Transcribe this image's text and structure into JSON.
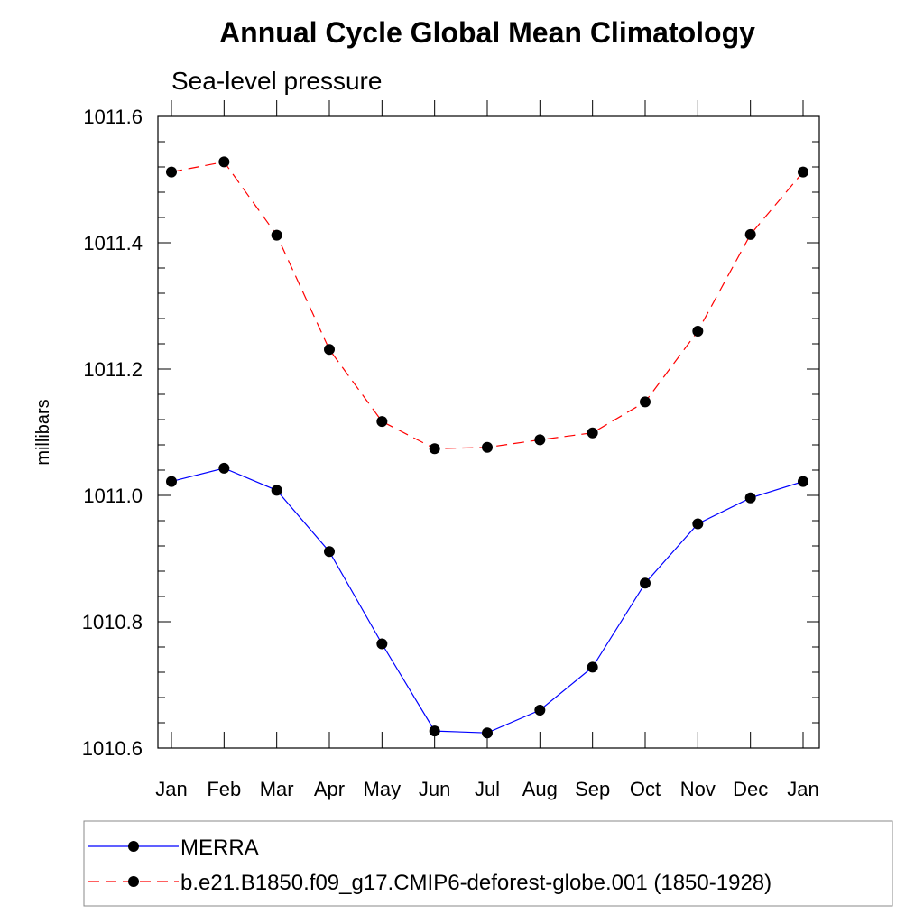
{
  "chart_data": {
    "type": "line",
    "title": "Annual Cycle Global Mean Climatology",
    "subtitle": "Sea-level pressure",
    "ylabel": "millibars",
    "xlabel": "",
    "categories": [
      "Jan",
      "Feb",
      "Mar",
      "Apr",
      "May",
      "Jun",
      "Jul",
      "Aug",
      "Sep",
      "Oct",
      "Nov",
      "Dec",
      "Jan"
    ],
    "ylim": [
      1010.6,
      1011.6
    ],
    "yticks": [
      1010.6,
      1010.8,
      1011.0,
      1011.2,
      1011.4,
      1011.6
    ],
    "ytick_labels": [
      "1010.6",
      "1010.8",
      "1011.0",
      "1011.2",
      "1011.4",
      "1011.6"
    ],
    "grid": false,
    "legend_position": "bottom",
    "series": [
      {
        "name": "MERRA",
        "color": "#0000ff",
        "style": "solid",
        "marker": "filled-circle",
        "values": [
          1011.022,
          1011.043,
          1011.008,
          1010.911,
          1010.765,
          1010.627,
          1010.624,
          1010.66,
          1010.728,
          1010.861,
          1010.955,
          1010.996,
          1011.022
        ]
      },
      {
        "name": "b.e21.B1850.f09_g17.CMIP6-deforest-globe.001 (1850-1928)",
        "color": "#ff0000",
        "style": "dashed",
        "marker": "filled-circle",
        "values": [
          1011.512,
          1011.528,
          1011.412,
          1011.231,
          1011.117,
          1011.074,
          1011.076,
          1011.088,
          1011.099,
          1011.148,
          1011.26,
          1011.413,
          1011.512
        ]
      }
    ]
  }
}
